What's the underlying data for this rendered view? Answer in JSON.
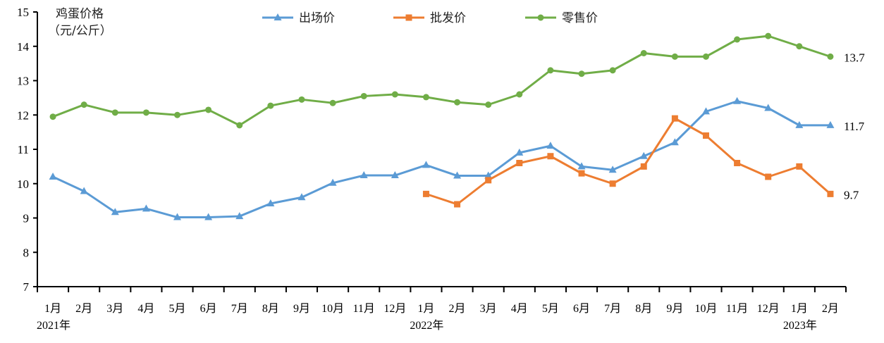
{
  "chart_data": {
    "type": "line",
    "title": "",
    "ylabel": "鸡蛋价格（元/公斤）",
    "ylabel_lines": [
      "鸡蛋价格",
      "（元/公斤）"
    ],
    "xlabel": "",
    "ylim": [
      7,
      15
    ],
    "yticks": [
      7,
      8,
      9,
      10,
      11,
      12,
      13,
      14,
      15
    ],
    "grid": false,
    "legend_position": "top",
    "categories": [
      "1月",
      "2月",
      "3月",
      "4月",
      "5月",
      "6月",
      "7月",
      "8月",
      "9月",
      "10月",
      "11月",
      "12月",
      "1月",
      "2月",
      "3月",
      "4月",
      "5月",
      "6月",
      "7月",
      "8月",
      "9月",
      "10月",
      "11月",
      "12月",
      "1月",
      "2月"
    ],
    "year_labels": [
      {
        "index": 0,
        "label": "2021年"
      },
      {
        "index": 12,
        "label": "2022年"
      },
      {
        "index": 24,
        "label": "2023年"
      }
    ],
    "series": [
      {
        "name": "出场价",
        "color": "#5B9BD5",
        "marker": "triangle",
        "values": [
          10.2,
          9.78,
          9.17,
          9.27,
          9.02,
          9.02,
          9.05,
          9.42,
          9.6,
          10.02,
          10.24,
          10.24,
          10.54,
          10.23,
          10.23,
          10.9,
          11.1,
          10.5,
          10.4,
          10.8,
          11.2,
          12.1,
          12.4,
          12.2,
          11.7,
          11.7
        ],
        "end_label": "11.7"
      },
      {
        "name": "批发价",
        "color": "#ED7D31",
        "marker": "square",
        "values": [
          null,
          null,
          null,
          null,
          null,
          null,
          null,
          null,
          null,
          null,
          null,
          null,
          9.7,
          9.4,
          10.1,
          10.6,
          10.8,
          10.3,
          10.0,
          10.5,
          11.9,
          11.4,
          10.6,
          10.2,
          10.5,
          9.7
        ],
        "end_label": "9.7"
      },
      {
        "name": "零售价",
        "color": "#70AD47",
        "marker": "circle",
        "values": [
          11.95,
          12.3,
          12.07,
          12.07,
          12.0,
          12.15,
          11.7,
          12.27,
          12.45,
          12.35,
          12.55,
          12.6,
          12.52,
          12.37,
          12.3,
          12.6,
          13.3,
          13.2,
          13.3,
          13.8,
          13.7,
          13.7,
          14.2,
          14.3,
          14.0,
          13.7
        ],
        "end_label": "13.7"
      }
    ]
  }
}
